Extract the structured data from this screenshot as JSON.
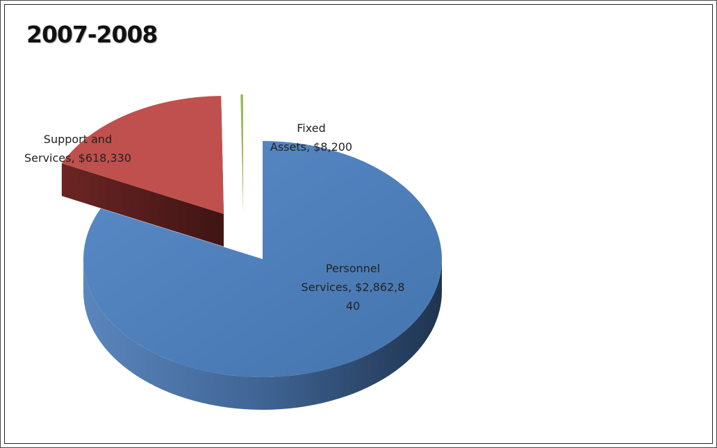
{
  "chart_data": {
    "type": "pie",
    "title": "2007-2008",
    "style": "3d-exploded",
    "slices": [
      {
        "category": "Personnel Services",
        "value": 2862840,
        "label_lines": [
          "Personnel",
          "Services, $2,862,8",
          "40"
        ],
        "color": "#4f81bd",
        "side_color": "#3a5f8c"
      },
      {
        "category": "Support and Services",
        "value": 618330,
        "label_lines": [
          "Support and",
          "Services, $618,330"
        ],
        "color": "#c0504d",
        "side_color": "#5c1f1e"
      },
      {
        "category": "Fixed Assets",
        "value": 8200,
        "label_lines": [
          "Fixed",
          "Assets, $8,200"
        ],
        "color": "#9bbb59",
        "side_color": "#5f7a2f"
      }
    ]
  }
}
